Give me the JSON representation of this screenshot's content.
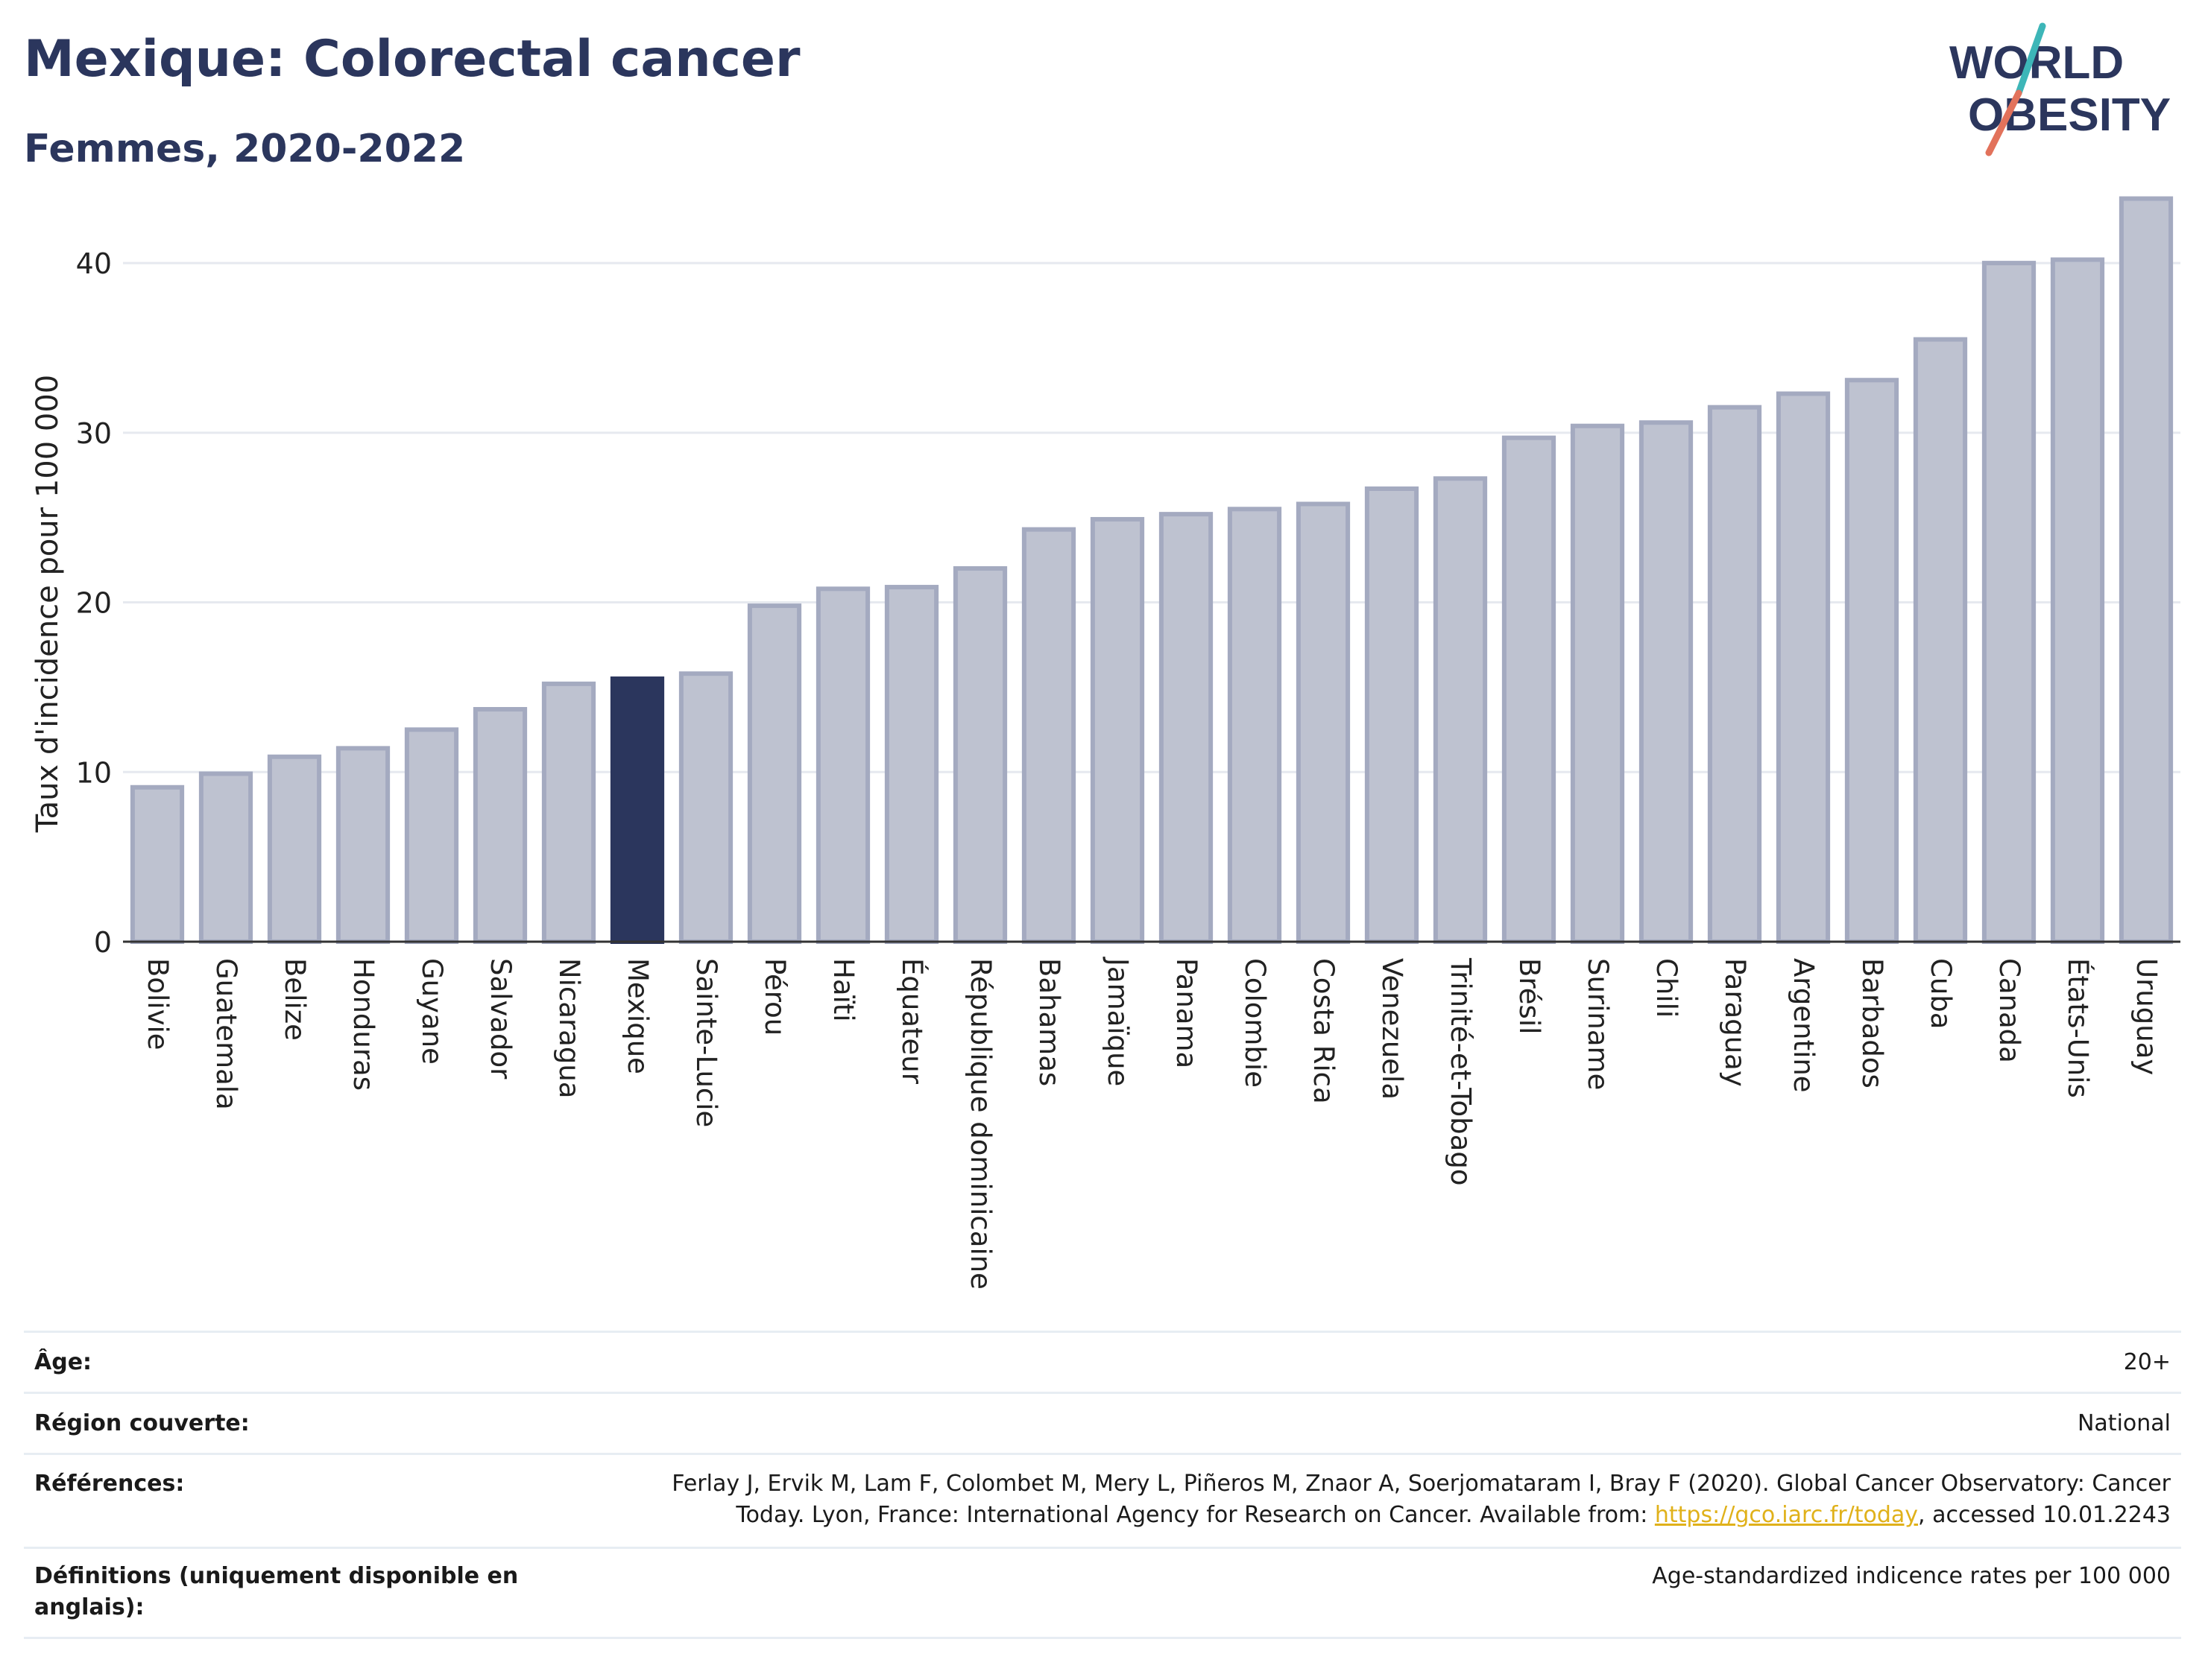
{
  "header": {
    "title": "Mexique: Colorectal cancer",
    "subtitle": "Femmes, 2020-2022"
  },
  "logo": {
    "line1": "WORLD",
    "line2": "OBESITY",
    "accent_teal": "#3db6b8",
    "accent_coral": "#e2725b",
    "text_color": "#2b365d"
  },
  "colors": {
    "bar": "#bec2d0",
    "bar_stroke": "#a4aac0",
    "highlight": "#2b365d",
    "grid": "#e6e9ef",
    "axis": "#333333"
  },
  "chart_data": {
    "type": "bar",
    "ylabel": "Taux d'incidence pour 100 000",
    "xlabel": "",
    "ylim": [
      0,
      44
    ],
    "yticks": [
      0,
      10,
      20,
      30,
      40
    ],
    "grid": true,
    "highlight": "Mexique",
    "categories": [
      "Bolivie",
      "Guatemala",
      "Belize",
      "Honduras",
      "Guyane",
      "Salvador",
      "Nicaragua",
      "Mexique",
      "Sainte-Lucie",
      "Pérou",
      "Haïti",
      "Équateur",
      "République dominicaine",
      "Bahamas",
      "Jamaïque",
      "Panama",
      "Colombie",
      "Costa Rica",
      "Venezuela",
      "Trinité-et-Tobago",
      "Brésil",
      "Suriname",
      "Chili",
      "Paraguay",
      "Argentine",
      "Barbados",
      "Cuba",
      "Canada",
      "États-Unis",
      "Uruguay"
    ],
    "values": [
      9.1,
      9.9,
      10.9,
      11.4,
      12.5,
      13.7,
      15.2,
      15.5,
      15.8,
      19.8,
      20.8,
      20.9,
      22.0,
      24.3,
      24.9,
      25.2,
      25.5,
      25.8,
      26.7,
      27.3,
      29.7,
      30.4,
      30.6,
      31.5,
      32.3,
      33.1,
      35.5,
      40.0,
      40.2,
      43.8
    ]
  },
  "meta": {
    "age": {
      "label": "Âge:",
      "value": "20+"
    },
    "region": {
      "label": "Région couverte:",
      "value": "National"
    },
    "references": {
      "label": "Références:",
      "text_before": "Ferlay J, Ervik M, Lam F, Colombet M, Mery L, Piñeros M, Znaor A, Soerjomataram I, Bray F (2020). Global Cancer Observatory: Cancer Today. Lyon, France: International Agency for Research on Cancer. Available from: ",
      "link": "https://gco.iarc.fr/today",
      "text_after": ", accessed 10.01.2243"
    },
    "definitions": {
      "label": "Définitions (uniquement disponible en anglais):",
      "value": "Age-standardized indicence rates per 100 000"
    }
  }
}
